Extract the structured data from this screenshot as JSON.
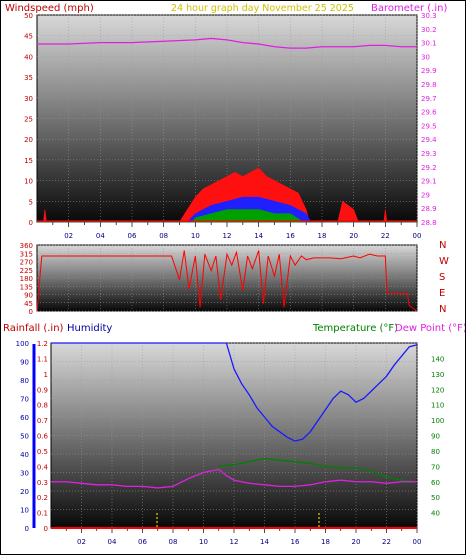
{
  "header": {
    "left_title": "Windspeed (mph)",
    "center_title": "24 hour graph day   November 25 2025",
    "right_title": "Barometer (.in)"
  },
  "colors": {
    "wind_left": "#c00000",
    "title_center": "#d0c000",
    "barometer": "#e020e0",
    "rain": "#c00000",
    "humidity": "#0000a0",
    "temperature": "#008000",
    "dewpoint": "#e020e0",
    "direction": "#ff0000"
  },
  "chart_data": [
    {
      "type": "line",
      "name": "wind-barometer",
      "x_ticks": [
        "02",
        "04",
        "06",
        "08",
        "10",
        "12",
        "14",
        "16",
        "18",
        "20",
        "22",
        "00"
      ],
      "y_left": {
        "label": "Windspeed (mph)",
        "range": [
          0,
          50
        ],
        "ticks": [
          "0",
          "5",
          "10",
          "15",
          "20",
          "25",
          "30",
          "35",
          "40",
          "45",
          "50"
        ]
      },
      "y_right": {
        "label": "Barometer (.in)",
        "range": [
          28.8,
          30.3
        ],
        "ticks": [
          "28.8",
          "28.9",
          "29",
          "29.1",
          "29.2",
          "29.3",
          "29.4",
          "29.5",
          "29.6",
          "29.7",
          "29.8",
          "29.9",
          "30",
          "30.1",
          "30.2",
          "30.3"
        ]
      },
      "series": [
        {
          "name": "Barometer",
          "axis": "right",
          "x": [
            0,
            2,
            4,
            6,
            8,
            10,
            11,
            12,
            13,
            14,
            15,
            16,
            17,
            18,
            19,
            20,
            21,
            22,
            23,
            24
          ],
          "y": [
            30.09,
            30.09,
            30.1,
            30.1,
            30.11,
            30.12,
            30.13,
            30.12,
            30.1,
            30.09,
            30.07,
            30.06,
            30.06,
            30.07,
            30.07,
            30.07,
            30.08,
            30.08,
            30.07,
            30.07
          ]
        },
        {
          "name": "Windspeed gust",
          "axis": "left",
          "x": [
            0,
            0.4,
            0.5,
            0.6,
            9.0,
            9.5,
            10,
            10.5,
            11,
            11.5,
            12,
            12.5,
            13,
            13.5,
            14,
            14.5,
            15,
            15.5,
            16,
            16.5,
            17,
            17.2,
            19.0,
            19.3,
            20,
            20.3,
            21.9,
            22.0,
            22.1,
            24
          ],
          "y": [
            0,
            0,
            3,
            0,
            0,
            3,
            6,
            8,
            9,
            10,
            11,
            12,
            11,
            12,
            13,
            11,
            10,
            9,
            8,
            7,
            3,
            0,
            0,
            5,
            3,
            0,
            0,
            3,
            0,
            0
          ]
        },
        {
          "name": "Windspeed average",
          "axis": "left",
          "x": [
            0,
            9.5,
            10,
            11,
            12,
            13,
            14,
            15,
            16,
            17,
            17.3,
            24
          ],
          "y": [
            0,
            0,
            2,
            4,
            5,
            6,
            6,
            5,
            4,
            2,
            0,
            0
          ]
        },
        {
          "name": "Windspeed low",
          "axis": "left",
          "x": [
            0,
            9.8,
            10,
            11,
            12,
            13,
            14,
            15,
            16,
            16.8,
            24
          ],
          "y": [
            0,
            0,
            1,
            2,
            3,
            3,
            3,
            2,
            2,
            0,
            0
          ]
        }
      ]
    },
    {
      "type": "line",
      "name": "wind-direction",
      "y_range": [
        0,
        360
      ],
      "y_ticks": [
        "0",
        "45",
        "90",
        "135",
        "180",
        "225",
        "270",
        "315",
        "360"
      ],
      "compass": [
        "N",
        "W",
        "S",
        "E",
        "N"
      ],
      "series": [
        {
          "name": "Direction",
          "x": [
            0,
            0.3,
            8.5,
            9.0,
            9.3,
            9.6,
            10.0,
            10.3,
            10.6,
            11.0,
            11.3,
            11.6,
            12.0,
            12.3,
            12.6,
            13.0,
            13.3,
            13.6,
            14.0,
            14.3,
            14.6,
            15.0,
            15.3,
            15.6,
            16.0,
            16.3,
            16.7,
            17.0,
            17.5,
            18.5,
            19.2,
            20.0,
            20.4,
            21.0,
            21.5,
            22.0,
            22.1,
            23.4,
            23.5,
            24
          ],
          "y": [
            0,
            300,
            300,
            170,
            330,
            120,
            300,
            20,
            310,
            220,
            300,
            60,
            310,
            250,
            320,
            110,
            300,
            230,
            330,
            40,
            300,
            190,
            310,
            20,
            300,
            250,
            300,
            280,
            290,
            290,
            285,
            300,
            290,
            310,
            300,
            300,
            95,
            95,
            30,
            0
          ]
        }
      ]
    },
    {
      "type": "line",
      "name": "rain-humidity-temperature",
      "x_ticks": [
        "02",
        "04",
        "06",
        "08",
        "10",
        "12",
        "14",
        "16",
        "18",
        "20",
        "22",
        "00"
      ],
      "left_labels": [
        "Rainfall (.in)",
        "Humidity"
      ],
      "right_labels": [
        "Temperature (°F)",
        "Dew Point (°F)"
      ],
      "y_humidity": {
        "range": [
          0,
          100
        ],
        "ticks": [
          "0",
          "10",
          "20",
          "30",
          "40",
          "50",
          "60",
          "70",
          "80",
          "90",
          "100"
        ]
      },
      "y_rain": {
        "range": [
          0,
          1.2
        ],
        "ticks": [
          "0",
          "0.1",
          "0.2",
          "0.3",
          "0.4",
          "0.5",
          "0.6",
          "0.7",
          "0.8",
          "0.9",
          "1",
          "1.1",
          "1.2"
        ]
      },
      "y_temperature": {
        "range": [
          30,
          150
        ],
        "ticks": [
          "40",
          "50",
          "60",
          "70",
          "80",
          "90",
          "100",
          "110",
          "120",
          "130",
          "140"
        ]
      },
      "series": [
        {
          "name": "Humidity",
          "axis": "humidity",
          "x": [
            0,
            11.5,
            12.0,
            12.5,
            13.0,
            13.5,
            14.0,
            14.5,
            15.0,
            15.5,
            16.0,
            16.5,
            17.0,
            17.5,
            18.0,
            18.5,
            19.0,
            19.5,
            20.0,
            20.5,
            21.0,
            21.5,
            22.0,
            22.5,
            23.0,
            23.5,
            24
          ],
          "y": [
            100,
            100,
            86,
            78,
            72,
            65,
            60,
            55,
            52,
            49,
            47,
            48,
            52,
            58,
            64,
            70,
            74,
            72,
            68,
            70,
            74,
            78,
            82,
            88,
            93,
            98,
            99
          ]
        },
        {
          "name": "Temperature",
          "axis": "temperature",
          "x": [
            11.0,
            12,
            13,
            14,
            15,
            16,
            17,
            18,
            19,
            20,
            20.5,
            21,
            21.5,
            22,
            22.5,
            23,
            24
          ],
          "y": [
            70,
            71,
            73,
            75,
            74,
            73,
            72,
            70,
            69,
            69,
            68,
            67,
            65,
            63,
            62,
            61,
            60
          ]
        },
        {
          "name": "Dew Point",
          "axis": "temperature",
          "x": [
            0,
            1,
            2,
            3,
            4,
            5,
            6,
            7,
            8,
            9,
            10,
            11,
            11.5,
            12,
            13,
            14,
            15,
            16,
            17,
            18,
            19,
            20,
            21,
            22,
            23,
            24
          ],
          "y": [
            60,
            60,
            59,
            58,
            58,
            57,
            57,
            56,
            57,
            62,
            66,
            68,
            64,
            61,
            59,
            58,
            57,
            57,
            58,
            60,
            61,
            60,
            60,
            59,
            60,
            60
          ]
        },
        {
          "name": "Rainfall",
          "axis": "rain",
          "x": [
            0,
            24
          ],
          "y": [
            0,
            0
          ]
        }
      ]
    }
  ]
}
